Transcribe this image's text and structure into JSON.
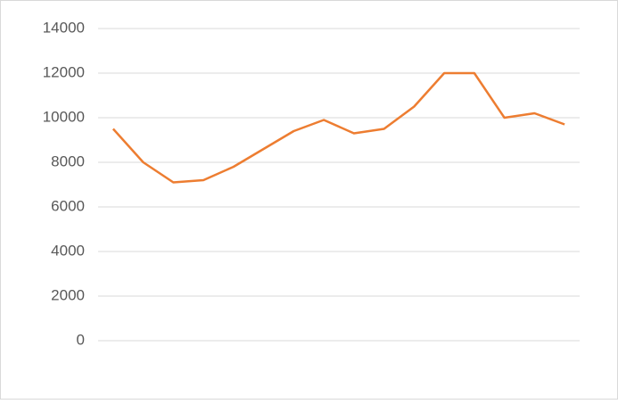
{
  "chart_data": {
    "type": "line",
    "categories": [
      null,
      null,
      null,
      null,
      null,
      null,
      null,
      null,
      null,
      null,
      null,
      null,
      null,
      null,
      null,
      null
    ],
    "series": [
      {
        "color": "#ed7d31",
        "values": [
          9500,
          8000,
          7100,
          7200,
          7800,
          8600,
          9400,
          9900,
          9300,
          9500,
          10500,
          12000,
          12000,
          10000,
          10200,
          9700
        ]
      }
    ],
    "ylim": [
      0,
      14000
    ],
    "yticks": [
      0,
      2000,
      4000,
      6000,
      8000,
      10000,
      12000,
      14000
    ],
    "grid": true
  }
}
